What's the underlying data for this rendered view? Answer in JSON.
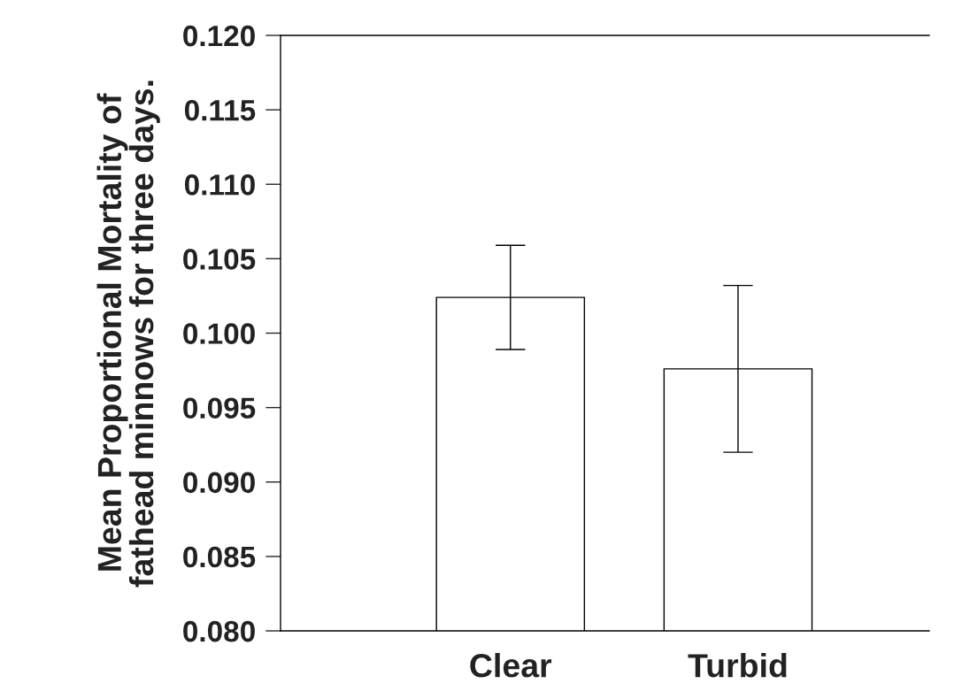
{
  "chart_data": {
    "type": "bar",
    "ylabel": "Mean Proportional Mortality of\nfathead minnows for three days.",
    "categories": [
      "Clear",
      "Turbid"
    ],
    "values": [
      0.1024,
      0.0976
    ],
    "errors": [
      0.0035,
      0.0056
    ],
    "color": "#ffffff",
    "ylim": [
      0.08,
      0.12
    ],
    "yticks": [
      {
        "value": 0.08,
        "label": "0.080"
      },
      {
        "value": 0.085,
        "label": "0.085"
      },
      {
        "value": 0.09,
        "label": "0.090"
      },
      {
        "value": 0.095,
        "label": "0.095"
      },
      {
        "value": 0.1,
        "label": "0.100"
      },
      {
        "value": 0.105,
        "label": "0.105"
      },
      {
        "value": 0.11,
        "label": "0.110"
      },
      {
        "value": 0.115,
        "label": "0.115"
      },
      {
        "value": 0.12,
        "label": "0.120"
      }
    ],
    "grid": false
  }
}
